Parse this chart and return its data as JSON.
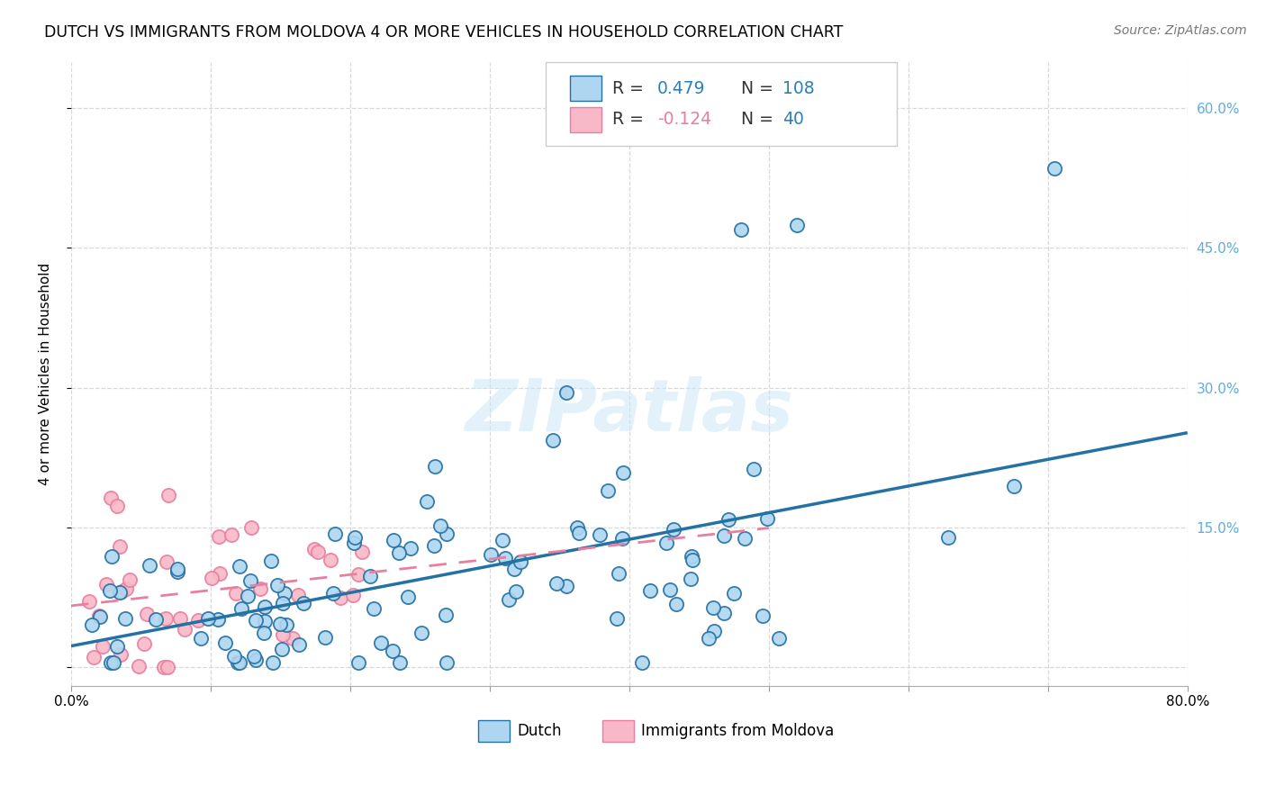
{
  "title": "DUTCH VS IMMIGRANTS FROM MOLDOVA 4 OR MORE VEHICLES IN HOUSEHOLD CORRELATION CHART",
  "source": "Source: ZipAtlas.com",
  "ylabel": "4 or more Vehicles in Household",
  "xlim": [
    0.0,
    0.8
  ],
  "ylim": [
    -0.02,
    0.65
  ],
  "dutch_R": 0.479,
  "dutch_N": 108,
  "moldova_R": -0.124,
  "moldova_N": 40,
  "dutch_color": "#aed6f1",
  "moldova_color": "#f9b8c8",
  "dutch_line_color": "#2471a3",
  "moldova_line_color": "#e87fa0",
  "watermark": "ZIPatlas",
  "grid_color": "#d5d8dc",
  "right_tick_color": "#5dade2",
  "yticks": [
    0.0,
    0.15,
    0.3,
    0.45,
    0.6
  ],
  "ytick_labels_right": [
    "",
    "15.0%",
    "30.0%",
    "45.0%",
    "60.0%"
  ],
  "xtick_labels": [
    "0.0%",
    "",
    "",
    "",
    "",
    "",
    "",
    "",
    "80.0%"
  ]
}
